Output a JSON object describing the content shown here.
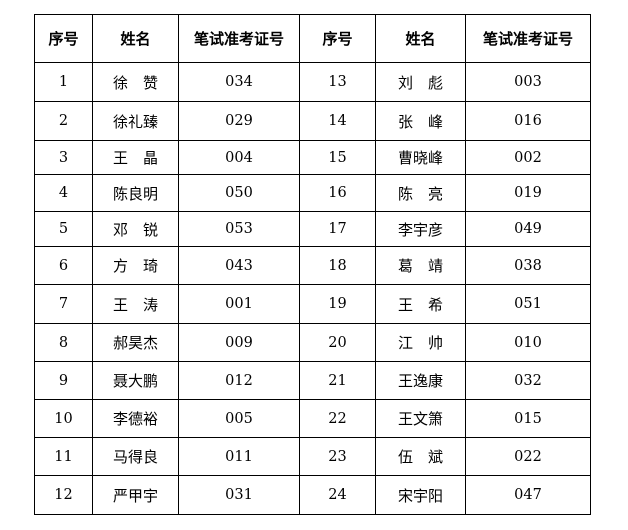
{
  "headers": [
    "序号",
    "姓名",
    "笔试准考证号",
    "序号",
    "姓名",
    "笔试准考证号"
  ],
  "rows": [
    [
      {
        "no": "1",
        "name": "徐　赞",
        "id": "034"
      },
      {
        "no": "13",
        "name": "刘　彪",
        "id": "003"
      }
    ],
    [
      {
        "no": "2",
        "name": "徐礼臻",
        "id": "029"
      },
      {
        "no": "14",
        "name": "张　峰",
        "id": "016"
      }
    ],
    [
      {
        "no": "3",
        "name": "王　晶",
        "id": "004"
      },
      {
        "no": "15",
        "name": "曹晓峰",
        "id": "002"
      }
    ],
    [
      {
        "no": "4",
        "name": "陈良明",
        "id": "050"
      },
      {
        "no": "16",
        "name": "陈　亮",
        "id": "019"
      }
    ],
    [
      {
        "no": "5",
        "name": "邓　锐",
        "id": "053"
      },
      {
        "no": "17",
        "name": "李宇彦",
        "id": "049"
      }
    ],
    [
      {
        "no": "6",
        "name": "方　琦",
        "id": "043"
      },
      {
        "no": "18",
        "name": "葛　靖",
        "id": "038"
      }
    ],
    [
      {
        "no": "7",
        "name": "王　涛",
        "id": "001"
      },
      {
        "no": "19",
        "name": "王　希",
        "id": "051"
      }
    ],
    [
      {
        "no": "8",
        "name": "郝昊杰",
        "id": "009"
      },
      {
        "no": "20",
        "name": "江　帅",
        "id": "010"
      }
    ],
    [
      {
        "no": "9",
        "name": "聂大鹏",
        "id": "012"
      },
      {
        "no": "21",
        "name": "王逸康",
        "id": "032"
      }
    ],
    [
      {
        "no": "10",
        "name": "李德裕",
        "id": "005"
      },
      {
        "no": "22",
        "name": "王文箫",
        "id": "015"
      }
    ],
    [
      {
        "no": "11",
        "name": "马得良",
        "id": "011"
      },
      {
        "no": "23",
        "name": "伍　斌",
        "id": "022"
      }
    ],
    [
      {
        "no": "12",
        "name": "严甲宇",
        "id": "031"
      },
      {
        "no": "24",
        "name": "宋宇阳",
        "id": "047"
      }
    ]
  ]
}
